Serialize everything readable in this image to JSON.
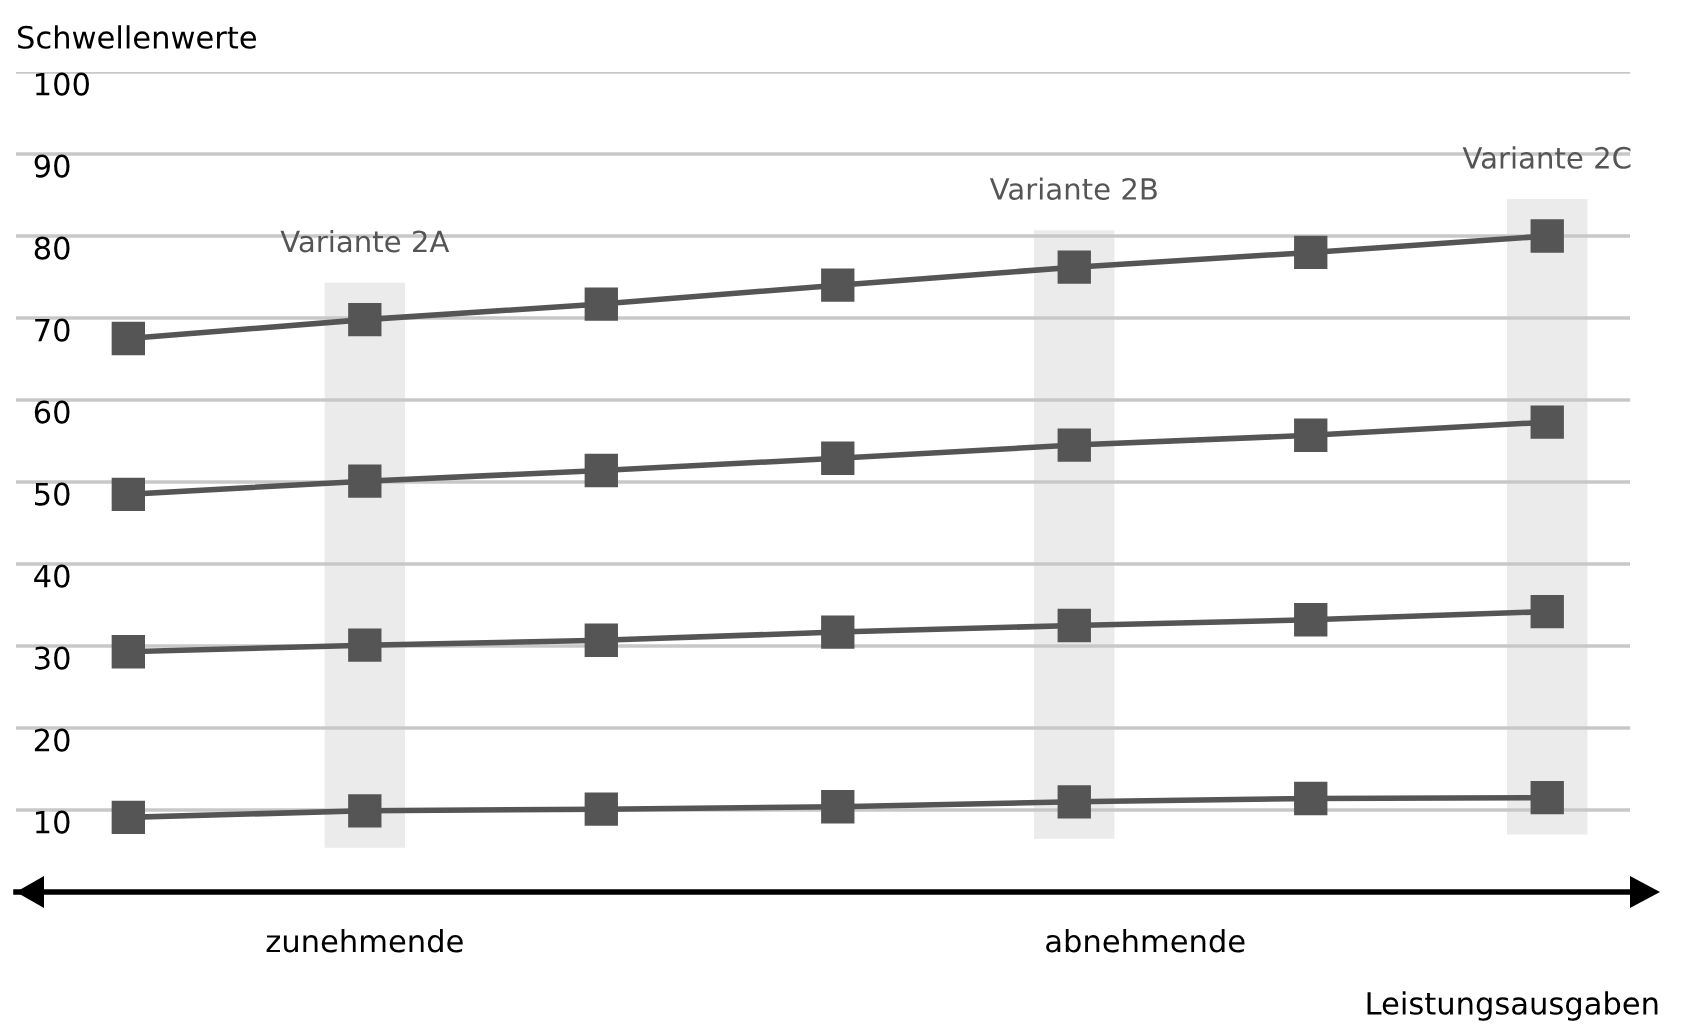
{
  "chart_data": {
    "type": "line",
    "ylabel": "Schwellenwerte",
    "xlabel": "Leistungsausgaben",
    "categories": [
      null,
      null,
      null,
      null,
      null,
      null,
      null
    ],
    "series": [
      {
        "color": "#555555",
        "values": [
          67.5,
          69.8,
          71.7,
          74.0,
          76.2,
          78.0,
          80.0
        ]
      },
      {
        "color": "#555555",
        "values": [
          48.5,
          50.1,
          51.4,
          52.9,
          54.5,
          55.7,
          57.3
        ]
      },
      {
        "color": "#555555",
        "values": [
          29.3,
          30.1,
          30.7,
          31.7,
          32.5,
          33.2,
          34.2
        ]
      },
      {
        "color": "#555555",
        "values": [
          9.1,
          9.9,
          10.1,
          10.4,
          11.0,
          11.4,
          11.5
        ]
      }
    ],
    "marker": "square",
    "line_style": "solid",
    "ylim": [
      0,
      100
    ],
    "yticks": [
      10,
      20,
      30,
      40,
      50,
      60,
      70,
      80,
      90,
      100
    ],
    "grid": "y",
    "annotations": [
      "Variante 2A",
      "Variante 2B",
      "Variante 2C",
      "zunehmende",
      "abnehmende"
    ]
  }
}
